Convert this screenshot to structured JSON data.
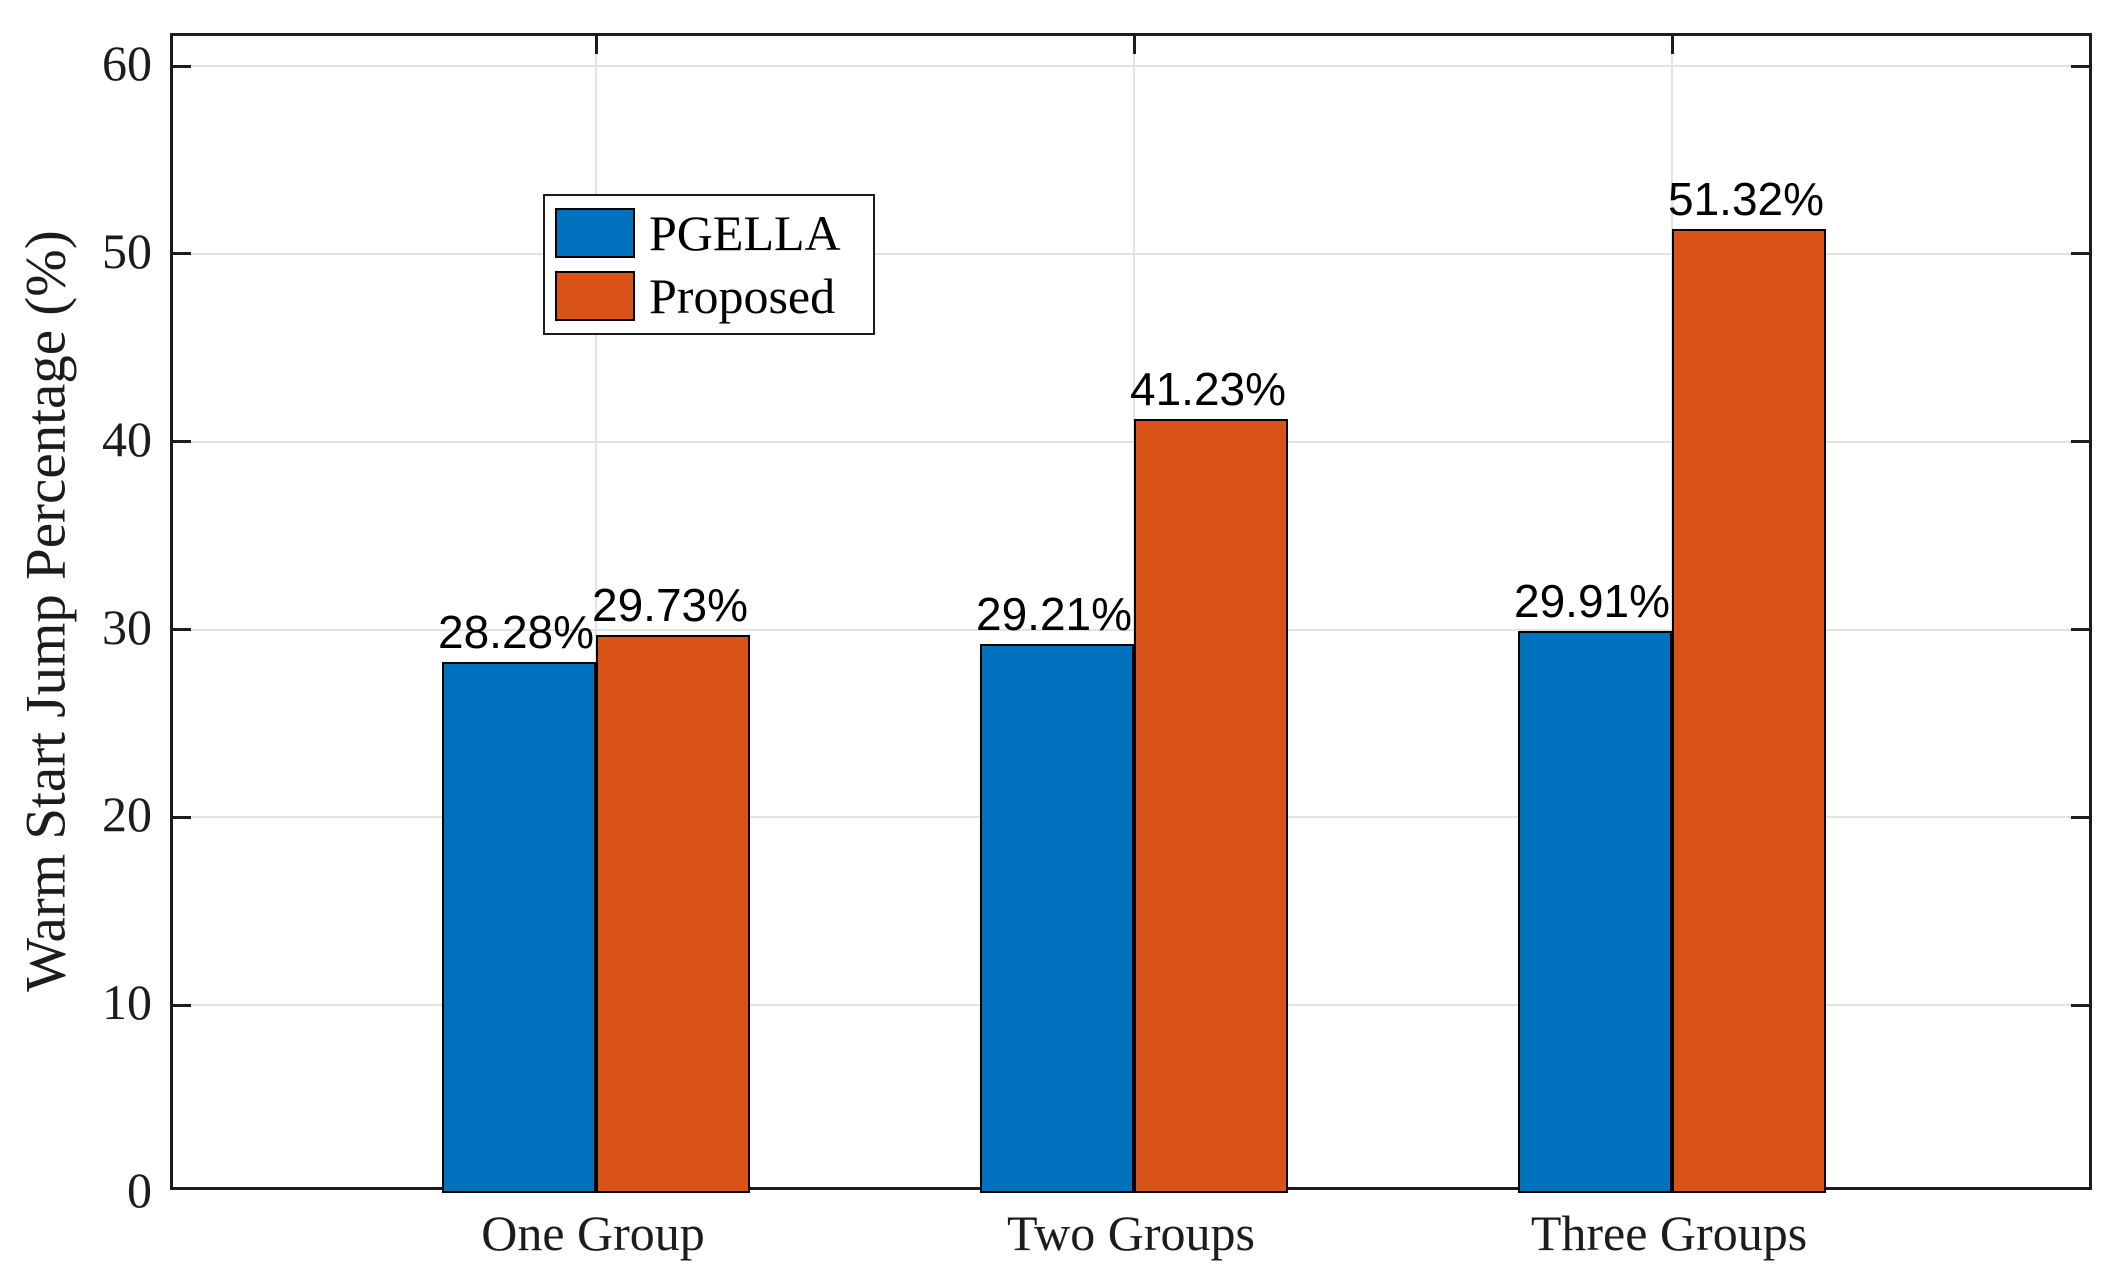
{
  "chart_data": {
    "type": "bar",
    "title": "",
    "xlabel": "",
    "ylabel": "Warm Start Jump Percentage (%)",
    "categories": [
      "One Group",
      "Two Groups",
      "Three Groups"
    ],
    "series": [
      {
        "name": "PGELLA",
        "color": "#0072BD",
        "values": [
          28.28,
          29.21,
          29.91
        ]
      },
      {
        "name": "Proposed",
        "color": "#D95319",
        "values": [
          29.73,
          41.23,
          51.32
        ]
      }
    ],
    "value_labels": [
      [
        "28.28%",
        "29.21%",
        "29.91%"
      ],
      [
        "29.73%",
        "41.23%",
        "51.32%"
      ]
    ],
    "ylim": [
      0,
      61.6
    ],
    "yticks": [
      0,
      10,
      20,
      30,
      40,
      50,
      60
    ],
    "ytick_labels": [
      "0",
      "10",
      "20",
      "30",
      "40",
      "50",
      "60"
    ],
    "grid": true,
    "grid_color": "#E2E2E2",
    "axis_color": "#1c1c1c",
    "bar_edge_color": "#000000",
    "background_color": "#ffffff",
    "legend": {
      "position": "upper-left-inside",
      "entries": [
        "PGELLA",
        "Proposed"
      ]
    }
  }
}
